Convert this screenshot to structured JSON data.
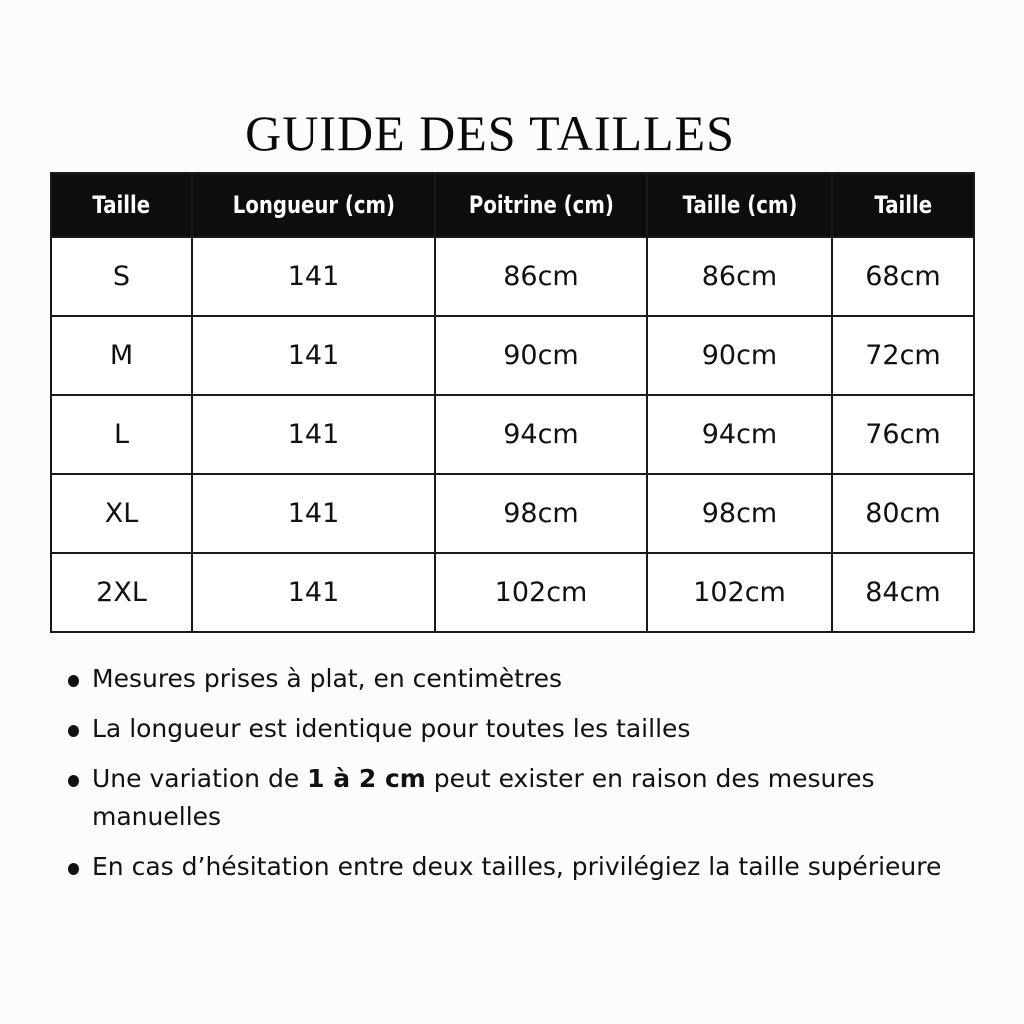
{
  "title": "GUIDE DES TAILLES",
  "table": {
    "headers": [
      "Taille",
      "Longueur (cm)",
      "Poitrine (cm)",
      "Taille (cm)",
      "Taille"
    ],
    "rows": [
      [
        "S",
        "141",
        "86cm",
        "86cm",
        "68cm"
      ],
      [
        "M",
        "141",
        "90cm",
        "90cm",
        "72cm"
      ],
      [
        "L",
        "141",
        "94cm",
        "94cm",
        "76cm"
      ],
      [
        "XL",
        "141",
        "98cm",
        "98cm",
        "80cm"
      ],
      [
        "2XL",
        "141",
        "102cm",
        "102cm",
        "84cm"
      ]
    ]
  },
  "notes": [
    {
      "text": "Mesures prises à plat, en centimètres"
    },
    {
      "text": "La longueur est identique pour toutes les tailles"
    },
    {
      "before": "Une variation de ",
      "bold": "1 à 2 cm",
      "after": " peut exister en raison des mesures manuelles"
    },
    {
      "text": "En cas d’hésitation entre deux tailles, privilégiez la taille supérieure"
    }
  ],
  "colors": {
    "header_bg": "#0d0d0d",
    "header_text": "#ffffff",
    "border": "#1a1a1a"
  }
}
